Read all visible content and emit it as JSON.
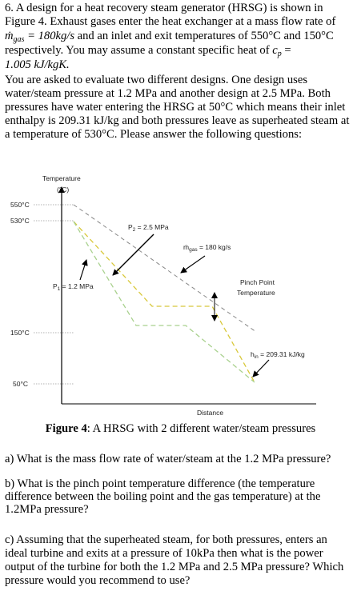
{
  "intro": [
    [
      "6. A design for a heat recovery steam generator (HRSG) is shown in"
    ],
    [
      "Figure 4. Exhaust gases enter the heat exchanger at a mass flow rate of"
    ],
    [
      "ṁ",
      "gas",
      " = 180kg/s",
      " and an inlet and exit temperatures of 550°C and 150°C"
    ],
    [
      "respectively. You may assume a constant specific heat of ",
      "c",
      "p",
      " ="
    ],
    [
      "1.005 kJ/kgK",
      "."
    ],
    [
      "You are asked to evaluate two different designs. One design uses"
    ],
    [
      "water/steam pressure at 1.2 MPa and another design at 2.5 MPa. Both"
    ],
    [
      "pressures have water entering the HRSG at 50°C which means their inlet"
    ],
    [
      "enthalpy is 209.31 kJ/kg and both pressures leave as superheated steam at"
    ],
    [
      "a temperature of 530°C. Please answer the following questions:"
    ]
  ],
  "figure": {
    "y_axis_label": "Temperature",
    "y_axis_unit": "(°C)",
    "ticks": [
      "550°C",
      "530°C",
      "150°C",
      "50°C"
    ],
    "x_axis_label": "Distance",
    "p2_label": [
      "P",
      "2",
      " = 2.5 MPa"
    ],
    "p1_label": [
      "P",
      "1",
      " = 1.2 MPa"
    ],
    "flow_label": [
      "ṁ",
      "gas",
      " = 180 kg/s"
    ],
    "pinch_label": [
      "Pinch Point",
      "Temperature"
    ],
    "enthalpy_label": [
      "h",
      "in",
      " = 209.31 kJ/kg"
    ]
  },
  "caption": {
    "label": "Figure 4",
    "text": ": A HRSG with 2 different water/steam pressures"
  },
  "questions": [
    [
      "a) What is the mass flow rate of water/steam at the 1.2 MPa pressure?"
    ],
    [
      "b) What is the pinch point temperature difference (the temperature",
      "difference between the boiling point and the gas temperature) at the",
      "1.2MPa pressure?"
    ],
    [
      "c) Assuming that the superheated steam, for both pressures, enters an",
      "ideal turbine and exits at a pressure of 10kPa then what is the power",
      "output of the turbine for both the 1.2 MPa and 2.5 MPa pressure? Which",
      "pressure would you recommend to use?"
    ]
  ]
}
